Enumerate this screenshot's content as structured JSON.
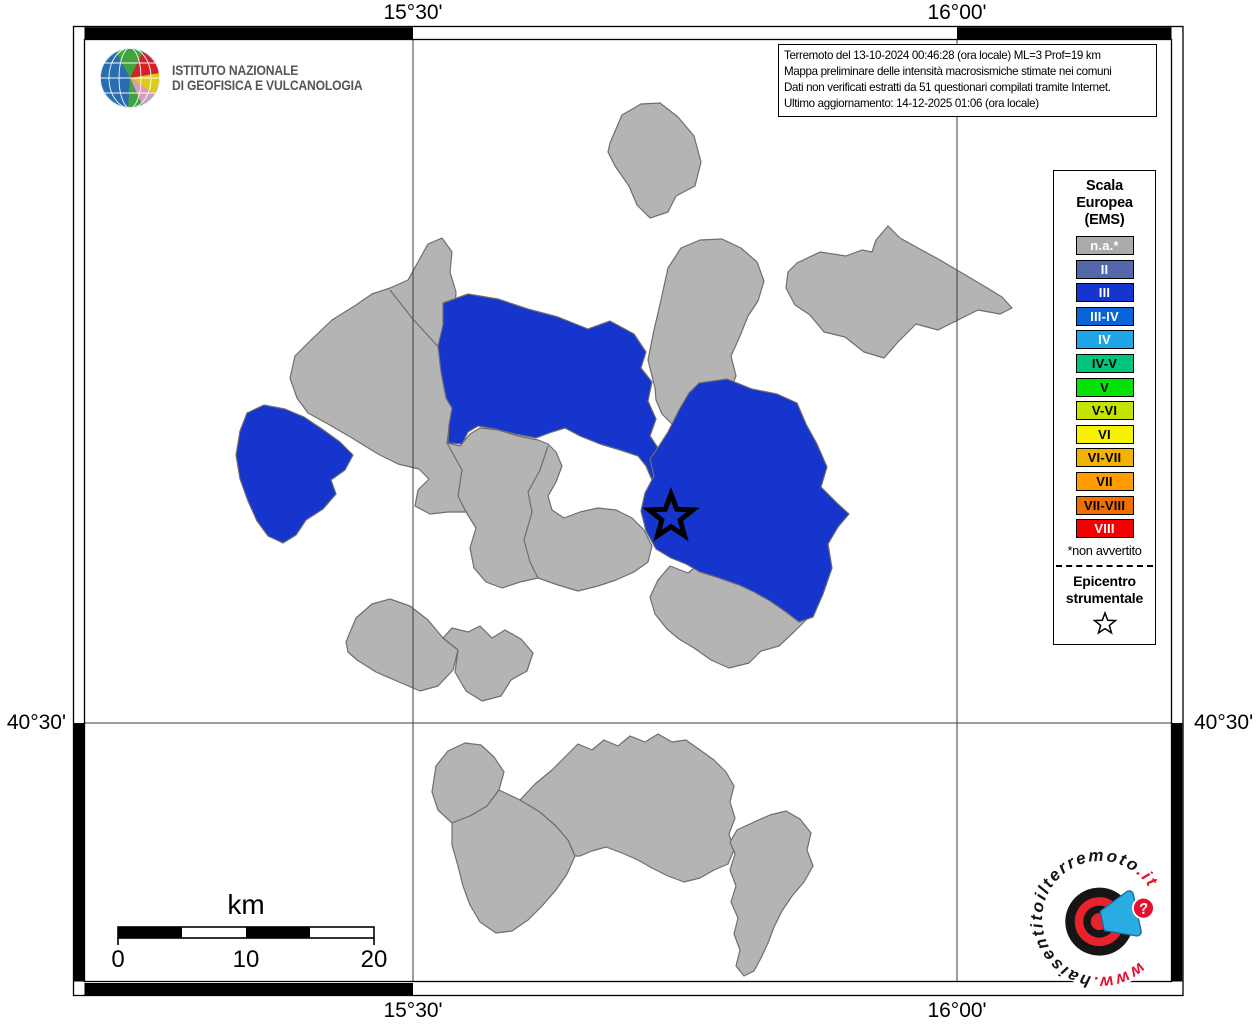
{
  "page": {
    "title": "Mappa preliminare delle intensità macrosismiche stimate nei comuni"
  },
  "branding": {
    "institute_line1": "ISTITUTO NAZIONALE",
    "institute_line2": "DI GEOFISICA E VULCANOLOGIA"
  },
  "info_box": {
    "lines": [
      "Terremoto del 13-10-2024 00:46:28 (ora locale) ML=3 Prof=19 km",
      "Mappa preliminare delle intensità macrosismiche stimate nei comuni",
      "Dati non verificati estratti da 51 questionari compilati tramite Internet.",
      "Ultimo aggiornamento: 14-12-2025 01:06 (ora locale)"
    ]
  },
  "axes": {
    "top": [
      "15°30'",
      "16°00'"
    ],
    "bottom": [
      "15°30'",
      "16°00'"
    ],
    "left": "40°30'",
    "right": "40°30'"
  },
  "legend": {
    "title_lines": [
      "Scala",
      "Europea",
      "(EMS)"
    ],
    "items": [
      {
        "label": "n.a.*",
        "color": "#aaaaaa",
        "text": "#ffffff"
      },
      {
        "label": "II",
        "color": "#5567ab",
        "text": "#ffffff"
      },
      {
        "label": "III",
        "color": "#1535cc",
        "text": "#ffffff"
      },
      {
        "label": "III-IV",
        "color": "#0862d8",
        "text": "#ffffff"
      },
      {
        "label": "IV",
        "color": "#1ea6e9",
        "text": "#ffffff"
      },
      {
        "label": "IV-V",
        "color": "#00c57d",
        "text": "#000000"
      },
      {
        "label": "V",
        "color": "#05e205",
        "text": "#000000"
      },
      {
        "label": "V-VI",
        "color": "#c4e400",
        "text": "#000000"
      },
      {
        "label": "VI",
        "color": "#f7f200",
        "text": "#000000"
      },
      {
        "label": "VI-VII",
        "color": "#f3b100",
        "text": "#000000"
      },
      {
        "label": "VII",
        "color": "#ff9c00",
        "text": "#000000"
      },
      {
        "label": "VII-VIII",
        "color": "#ef6f00",
        "text": "#000000"
      },
      {
        "label": "VIII",
        "color": "#f40000",
        "text": "#ffffff"
      }
    ],
    "footnote": "*non avvertito",
    "epicenter_lines": [
      "Epicentro",
      "strumentale"
    ]
  },
  "scalebar": {
    "unit": "km",
    "ticks": [
      "0",
      "10",
      "20"
    ]
  },
  "map": {
    "colors": {
      "na_fill": "#b4b4b4",
      "iii_fill": "#1535cc",
      "boundary": "#6e6e6e",
      "grid": "#3c3c3c"
    }
  },
  "watermark": {
    "prefix": "www.",
    "brand": "haisentito",
    "middle": "il",
    "brand2": "terremoto",
    "tld": ".it",
    "badge": "?"
  }
}
